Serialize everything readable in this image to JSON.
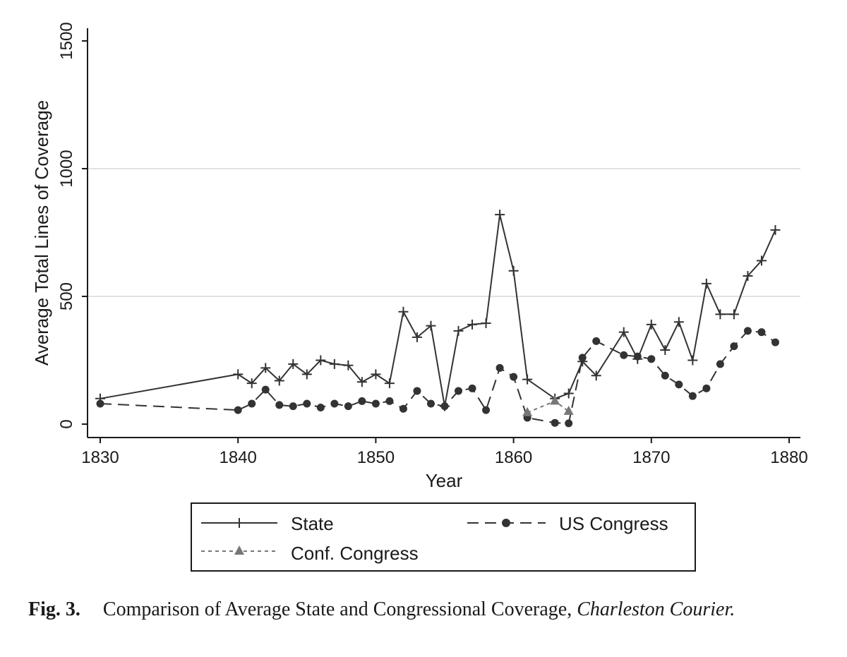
{
  "chart_data": {
    "type": "line",
    "xlabel": "Year",
    "ylabel": "Average Total Lines of Coverage",
    "xlim": [
      1830,
      1880
    ],
    "ylim": [
      0,
      1500
    ],
    "x_ticks": [
      1830,
      1840,
      1850,
      1860,
      1870,
      1880
    ],
    "y_ticks": [
      0,
      500,
      1000,
      1500
    ],
    "gridlines_y": [
      500,
      1000
    ],
    "legend_position": "bottom",
    "series": [
      {
        "name": "State",
        "style": "solid",
        "marker": "plus",
        "color": "#333333",
        "points": [
          [
            1830,
            100
          ],
          [
            1840,
            195
          ],
          [
            1841,
            160
          ],
          [
            1842,
            220
          ],
          [
            1843,
            170
          ],
          [
            1844,
            235
          ],
          [
            1845,
            195
          ],
          [
            1846,
            250
          ],
          [
            1847,
            235
          ],
          [
            1848,
            230
          ],
          [
            1849,
            165
          ],
          [
            1850,
            195
          ],
          [
            1851,
            160
          ],
          [
            1852,
            440
          ],
          [
            1853,
            340
          ],
          [
            1854,
            385
          ],
          [
            1855,
            70
          ],
          [
            1856,
            365
          ],
          [
            1857,
            390
          ],
          [
            1858,
            395
          ],
          [
            1859,
            820
          ],
          [
            1860,
            600
          ],
          [
            1861,
            175
          ],
          [
            1863,
            100
          ],
          [
            1864,
            120
          ],
          [
            1865,
            245
          ],
          [
            1866,
            190
          ],
          [
            1868,
            360
          ],
          [
            1869,
            255
          ],
          [
            1870,
            390
          ],
          [
            1871,
            290
          ],
          [
            1872,
            400
          ],
          [
            1873,
            250
          ],
          [
            1874,
            550
          ],
          [
            1875,
            430
          ],
          [
            1876,
            430
          ],
          [
            1877,
            580
          ],
          [
            1878,
            640
          ],
          [
            1879,
            760
          ]
        ]
      },
      {
        "name": "US Congress",
        "style": "long-dash",
        "marker": "circle",
        "color": "#333333",
        "points": [
          [
            1830,
            80
          ],
          [
            1840,
            55
          ],
          [
            1841,
            80
          ],
          [
            1842,
            135
          ],
          [
            1843,
            75
          ],
          [
            1844,
            70
          ],
          [
            1845,
            80
          ],
          [
            1846,
            65
          ],
          [
            1847,
            80
          ],
          [
            1848,
            70
          ],
          [
            1849,
            90
          ],
          [
            1850,
            80
          ],
          [
            1851,
            90
          ],
          [
            1852,
            60
          ],
          [
            1853,
            130
          ],
          [
            1854,
            80
          ],
          [
            1855,
            70
          ],
          [
            1856,
            130
          ],
          [
            1857,
            140
          ],
          [
            1858,
            55
          ],
          [
            1859,
            220
          ],
          [
            1860,
            185
          ],
          [
            1861,
            25
          ],
          [
            1863,
            5
          ],
          [
            1864,
            3
          ],
          [
            1865,
            260
          ],
          [
            1866,
            325
          ],
          [
            1868,
            270
          ],
          [
            1869,
            265
          ],
          [
            1870,
            255
          ],
          [
            1871,
            190
          ],
          [
            1872,
            155
          ],
          [
            1873,
            110
          ],
          [
            1874,
            140
          ],
          [
            1875,
            235
          ],
          [
            1876,
            305
          ],
          [
            1877,
            365
          ],
          [
            1878,
            360
          ],
          [
            1879,
            320
          ]
        ]
      },
      {
        "name": "Conf. Congress",
        "style": "short-dash",
        "marker": "triangle",
        "color": "#777777",
        "points": [
          [
            1861,
            45
          ],
          [
            1863,
            90
          ],
          [
            1864,
            50
          ]
        ]
      }
    ]
  },
  "legend": {
    "state_label": "State",
    "us_congress_label": "US Congress",
    "conf_congress_label": "Conf. Congress"
  },
  "caption": {
    "label": "Fig. 3.",
    "text": "Comparison of Average State and Congressional Coverage,",
    "italic": "Charleston Courier."
  }
}
